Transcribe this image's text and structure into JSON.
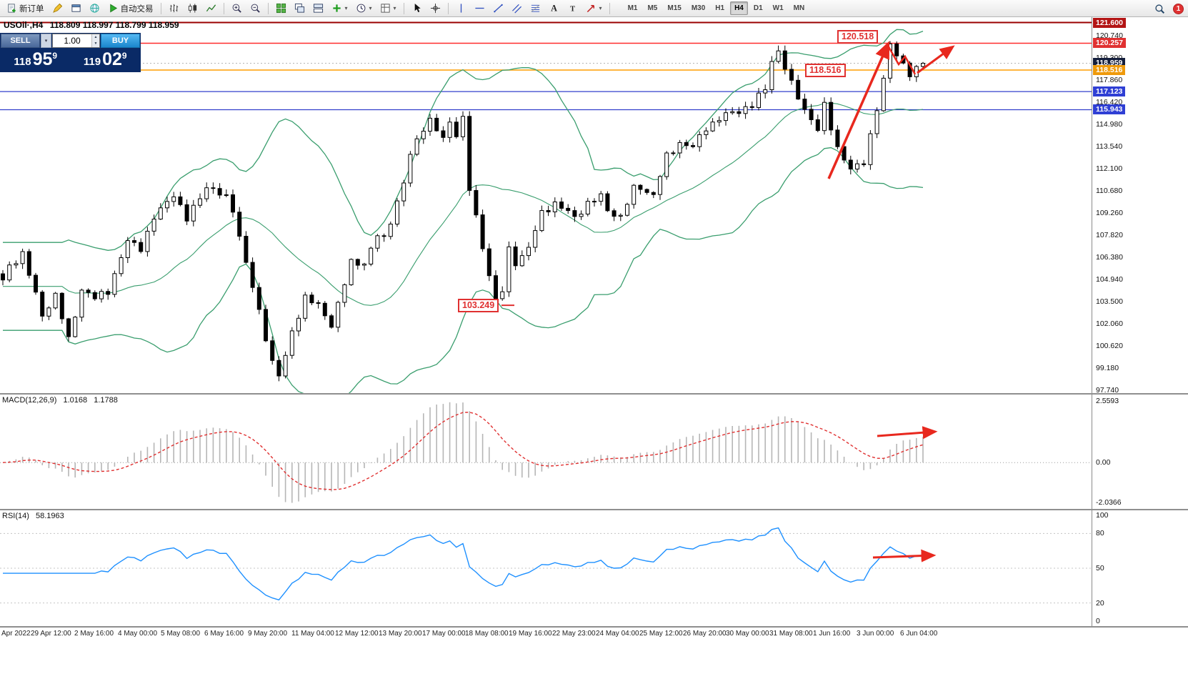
{
  "toolbar": {
    "new_order_label": "新订单",
    "autotrading_label": "自动交易",
    "timeframes": [
      "M1",
      "M5",
      "M15",
      "M30",
      "H1",
      "H4",
      "D1",
      "W1",
      "MN"
    ],
    "active_timeframe": "H4",
    "notification_count": "1"
  },
  "trade_panel": {
    "sell_label": "SELL",
    "buy_label": "BUY",
    "volume": "1.00",
    "bid": {
      "whole": "118",
      "pips": "95",
      "point": "9"
    },
    "ask": {
      "whole": "119",
      "pips": "02",
      "point": "9"
    }
  },
  "chart": {
    "symbol_title": "USOil·,H4",
    "ohlc_text": "118.809 118.997 118.799 118.959",
    "annotations": {
      "peak_label": "120.518",
      "mid_label": "118.516",
      "low_label": "103.249"
    }
  },
  "price_axis": {
    "labels": [
      "120.740",
      "119.300",
      "117.860",
      "116.420",
      "114.980",
      "113.540",
      "112.100",
      "110.680",
      "109.260",
      "107.820",
      "106.380",
      "104.940",
      "103.500",
      "102.060",
      "100.620",
      "99.180",
      "97.740"
    ],
    "badges": [
      {
        "text": "121.600",
        "price": 121.6,
        "bg": "#b31515"
      },
      {
        "text": "120.257",
        "price": 120.257,
        "bg": "#e03131"
      },
      {
        "text": "118.959",
        "price": 118.959,
        "bg": "#141e3c"
      },
      {
        "text": "118.516",
        "price": 118.516,
        "bg": "#ef9a0b"
      },
      {
        "text": "117.123",
        "price": 117.123,
        "bg": "#2f3fd4"
      },
      {
        "text": "115.943",
        "price": 115.943,
        "bg": "#2f3fd4"
      }
    ]
  },
  "macd_panel": {
    "label": "MACD(12,26,9)",
    "value_main": "1.0168",
    "value_signal": "1.1788",
    "axis_max": "2.5593",
    "axis_zero": "0.00",
    "axis_min": "-2.0366"
  },
  "rsi_panel": {
    "label": "RSI(14)",
    "value": "58.1963",
    "axis": [
      "100",
      "80",
      "50",
      "20",
      "0"
    ]
  },
  "time_axis": {
    "labels": [
      "Apr 2022",
      "29 Apr 12:00",
      "2 May 16:00",
      "4 May 00:00",
      "5 May 08:00",
      "6 May 16:00",
      "9 May 20:00",
      "11 May 04:00",
      "12 May 12:00",
      "13 May 20:00",
      "17 May 00:00",
      "18 May 08:00",
      "19 May 16:00",
      "22 May 23:00",
      "24 May 04:00",
      "25 May 12:00",
      "26 May 20:00",
      "30 May 00:00",
      "31 May 08:00",
      "1 Jun 16:00",
      "3 Jun 00:00",
      "6 Jun 04:00"
    ]
  },
  "chart_data": {
    "type": "candlestick",
    "symbol": "USOil",
    "timeframe": "H4",
    "current_ohlc": {
      "open": 118.809,
      "high": 118.997,
      "low": 118.799,
      "close": 118.959
    },
    "bid": 118.959,
    "ask": 119.029,
    "y_range": [
      97.55,
      121.95
    ],
    "num_candles": 141,
    "close_waypoints": [
      [
        0,
        104.8
      ],
      [
        1,
        105.8
      ],
      [
        3,
        106.6
      ],
      [
        6,
        102.6
      ],
      [
        8,
        103.9
      ],
      [
        10,
        101.0
      ],
      [
        12,
        104.3
      ],
      [
        14,
        103.7
      ],
      [
        16,
        104.2
      ],
      [
        19,
        107.4
      ],
      [
        21,
        107.0
      ],
      [
        23,
        108.9
      ],
      [
        26,
        110.5
      ],
      [
        28,
        108.8
      ],
      [
        31,
        111.0
      ],
      [
        34,
        110.2
      ],
      [
        35,
        109.5
      ],
      [
        37,
        106.0
      ],
      [
        39,
        102.8
      ],
      [
        41,
        99.6
      ],
      [
        42,
        98.7
      ],
      [
        43,
        99.9
      ],
      [
        44,
        101.5
      ],
      [
        46,
        103.8
      ],
      [
        48,
        103.2
      ],
      [
        50,
        102.0
      ],
      [
        53,
        106.0
      ],
      [
        55,
        106.0
      ],
      [
        57,
        107.8
      ],
      [
        58,
        107.5
      ],
      [
        60,
        110.0
      ],
      [
        61,
        111.2
      ],
      [
        62,
        113.0
      ],
      [
        64,
        114.8
      ],
      [
        65,
        115.3
      ],
      [
        67,
        114.0
      ],
      [
        68,
        115.1
      ],
      [
        69,
        114.4
      ],
      [
        70,
        115.4
      ],
      [
        71,
        110.8
      ],
      [
        73,
        107.0
      ],
      [
        75,
        103.6
      ],
      [
        76,
        104.2
      ],
      [
        77,
        106.8
      ],
      [
        78,
        106.0
      ],
      [
        79,
        106.5
      ],
      [
        80,
        107.0
      ],
      [
        82,
        109.2
      ],
      [
        84,
        109.9
      ],
      [
        86,
        109.3
      ],
      [
        87,
        108.9
      ],
      [
        89,
        109.9
      ],
      [
        91,
        110.3
      ],
      [
        92,
        109.4
      ],
      [
        94,
        109.0
      ],
      [
        96,
        110.8
      ],
      [
        97,
        110.9
      ],
      [
        99,
        110.4
      ],
      [
        101,
        112.9
      ],
      [
        103,
        113.8
      ],
      [
        105,
        113.5
      ],
      [
        107,
        114.8
      ],
      [
        110,
        115.6
      ],
      [
        112,
        115.9
      ],
      [
        114,
        116.2
      ],
      [
        115,
        116.8
      ],
      [
        116,
        117.3
      ],
      [
        117,
        119.2
      ],
      [
        118,
        119.7
      ],
      [
        120,
        117.6
      ],
      [
        122,
        116.0
      ],
      [
        124,
        114.6
      ],
      [
        125,
        116.2
      ],
      [
        127,
        113.5
      ],
      [
        129,
        112.0
      ],
      [
        131,
        112.6
      ],
      [
        132,
        114.3
      ],
      [
        133,
        116.0
      ],
      [
        134,
        117.8
      ],
      [
        135,
        120.2
      ],
      [
        136,
        119.6
      ],
      [
        137,
        118.9
      ],
      [
        138,
        118.2
      ],
      [
        139,
        118.5
      ],
      [
        140,
        118.959
      ]
    ],
    "hlines": [
      {
        "price": 121.6,
        "color": "#990000",
        "width": 2
      },
      {
        "price": 120.257,
        "color": "#ff2e2e",
        "width": 1.5
      },
      {
        "price": 118.516,
        "color": "#ff9d00",
        "width": 1.6
      },
      {
        "price": 117.123,
        "color": "#3340cc",
        "width": 1.3
      },
      {
        "price": 115.943,
        "color": "#3340cc",
        "width": 1.3
      }
    ],
    "annotation_prices": {
      "peak": 120.518,
      "mid": 118.516,
      "low": 103.249
    },
    "indicators": {
      "bollinger": {
        "period": 20,
        "deviation": 2,
        "color": "#3a9e6e"
      },
      "macd": {
        "fast": 12,
        "slow": 26,
        "signal": 9,
        "values": [
          1.0168,
          1.1788
        ]
      },
      "rsi": {
        "period": 14,
        "value": 58.1963
      }
    }
  }
}
